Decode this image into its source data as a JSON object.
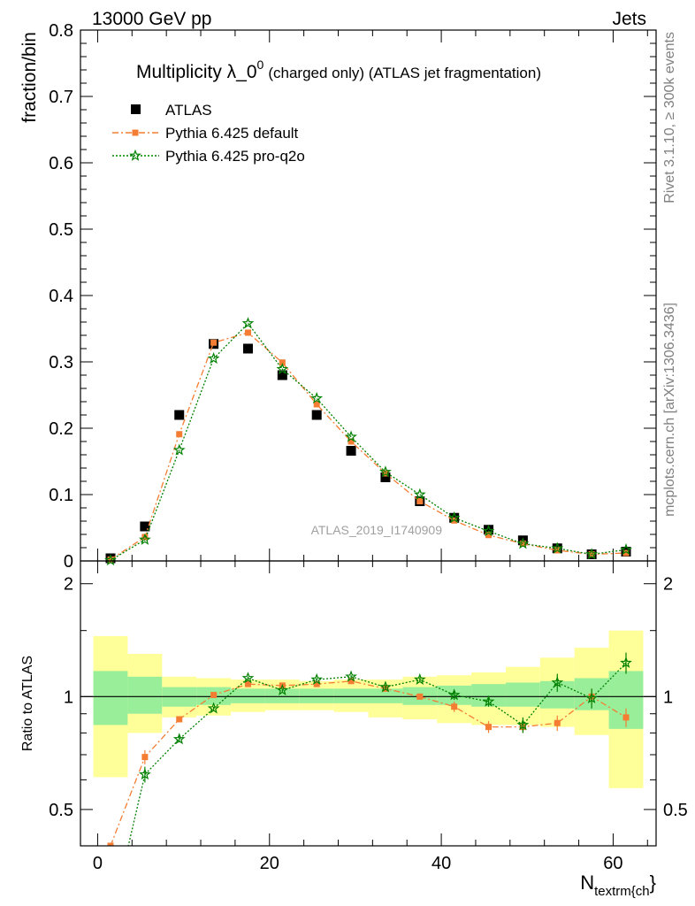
{
  "header": {
    "left": "13000 GeV pp",
    "right": "Jets"
  },
  "side_labels": {
    "rivet": "Rivet 3.1.10, ≥ 300k events",
    "mcplots": "mcplots.cern.ch [arXiv:1306.3436]"
  },
  "colors": {
    "atlas": "#000000",
    "default": "#f47d33",
    "proq2o": "#008000",
    "band_inner": "#99ee99",
    "band_outer": "#ffff99"
  },
  "chart_data": [
    {
      "type": "scatter",
      "title_main": "Multiplicity λ_0",
      "title_sup": "0",
      "title_rest": "(charged only) (ATLAS jet fragmentation)",
      "ylabel": "fraction/bin",
      "watermark": "ATLAS_2019_I1740909",
      "xlim": [
        -2,
        65
      ],
      "ylim": [
        0,
        0.8
      ],
      "yticks": [
        0,
        0.1,
        0.2,
        0.3,
        0.4,
        0.5,
        0.6,
        0.7,
        0.8
      ],
      "ytick_labels": [
        "0",
        "0.1",
        "0.2",
        "0.3",
        "0.4",
        "0.5",
        "0.6",
        "0.7",
        "0.8"
      ],
      "legend_position": "top-left",
      "x": [
        1.5,
        5.5,
        9.5,
        13.5,
        17.5,
        21.5,
        25.5,
        29.5,
        33.5,
        37.5,
        41.5,
        45.5,
        49.5,
        53.5,
        57.5,
        61.5
      ],
      "series": [
        {
          "name": "ATLAS",
          "key": "atlas",
          "values": [
            0.004,
            0.052,
            0.22,
            0.327,
            0.32,
            0.28,
            0.22,
            0.166,
            0.126,
            0.09,
            0.065,
            0.047,
            0.031,
            0.019,
            0.01,
            0.014
          ]
        },
        {
          "name": "Pythia 6.425 default",
          "key": "default",
          "values": [
            0.002,
            0.036,
            0.191,
            0.329,
            0.344,
            0.299,
            0.236,
            0.18,
            0.132,
            0.09,
            0.061,
            0.039,
            0.026,
            0.016,
            0.01,
            0.012
          ]
        },
        {
          "name": "Pythia 6.425 pro-q2o",
          "key": "proq2o",
          "values": [
            0.001,
            0.032,
            0.167,
            0.305,
            0.358,
            0.289,
            0.245,
            0.187,
            0.134,
            0.1,
            0.065,
            0.045,
            0.026,
            0.019,
            0.01,
            0.017
          ]
        }
      ]
    },
    {
      "type": "line",
      "ylabel": "Ratio to ATLAS",
      "xlabel": "N",
      "xlabel_sub": "textrm{ch",
      "xlabel_end": "}",
      "xlim": [
        -2,
        65
      ],
      "ylim": [
        0.4,
        2.3
      ],
      "log_y": true,
      "xticks": [
        0,
        20,
        40,
        60
      ],
      "xtick_labels": [
        "0",
        "20",
        "40",
        "60"
      ],
      "yticks": [
        0.5,
        1,
        2
      ],
      "ytick_labels": [
        "0.5",
        "1",
        "2"
      ],
      "x_edges": [
        -0.5,
        3.5,
        7.5,
        11.5,
        15.5,
        19.5,
        23.5,
        27.5,
        31.5,
        35.5,
        39.5,
        43.5,
        47.5,
        51.5,
        55.5,
        59.5,
        63.5
      ],
      "band_inner": {
        "lo": [
          0.84,
          0.9,
          0.94,
          0.95,
          0.96,
          0.96,
          0.96,
          0.96,
          0.96,
          0.95,
          0.95,
          0.94,
          0.94,
          0.93,
          0.92,
          0.82
        ],
        "hi": [
          1.17,
          1.13,
          1.06,
          1.06,
          1.05,
          1.05,
          1.05,
          1.05,
          1.05,
          1.06,
          1.07,
          1.08,
          1.09,
          1.1,
          1.12,
          1.17
        ]
      },
      "band_outer": {
        "lo": [
          0.61,
          0.8,
          0.88,
          0.89,
          0.91,
          0.92,
          0.92,
          0.91,
          0.88,
          0.87,
          0.85,
          0.84,
          0.84,
          0.83,
          0.79,
          0.57
        ],
        "hi": [
          1.45,
          1.3,
          1.13,
          1.12,
          1.11,
          1.11,
          1.1,
          1.11,
          1.11,
          1.13,
          1.14,
          1.16,
          1.2,
          1.27,
          1.35,
          1.5
        ]
      },
      "x": [
        1.5,
        5.5,
        9.5,
        13.5,
        17.5,
        21.5,
        25.5,
        29.5,
        33.5,
        37.5,
        41.5,
        45.5,
        49.5,
        53.5,
        57.5,
        61.5
      ],
      "series": [
        {
          "key": "default",
          "values": [
            0.4,
            0.69,
            0.87,
            1.01,
            1.08,
            1.07,
            1.08,
            1.1,
            1.05,
            1.0,
            0.94,
            0.83,
            0.83,
            0.85,
            1.0,
            0.88
          ],
          "errors": [
            0,
            0.03,
            0.015,
            0.01,
            0.01,
            0.01,
            0.01,
            0.01,
            0.015,
            0.015,
            0.03,
            0.03,
            0.03,
            0.04,
            0.05,
            0.05
          ]
        },
        {
          "key": "proq2o",
          "values": [
            0.25,
            0.62,
            0.77,
            0.93,
            1.12,
            1.04,
            1.11,
            1.13,
            1.06,
            1.11,
            1.01,
            0.97,
            0.84,
            1.09,
            0.99,
            1.23
          ],
          "errors": [
            0,
            0.03,
            0.015,
            0.01,
            0.01,
            0.01,
            0.01,
            0.01,
            0.015,
            0.015,
            0.03,
            0.03,
            0.04,
            0.06,
            0.06,
            0.08
          ]
        }
      ]
    }
  ]
}
